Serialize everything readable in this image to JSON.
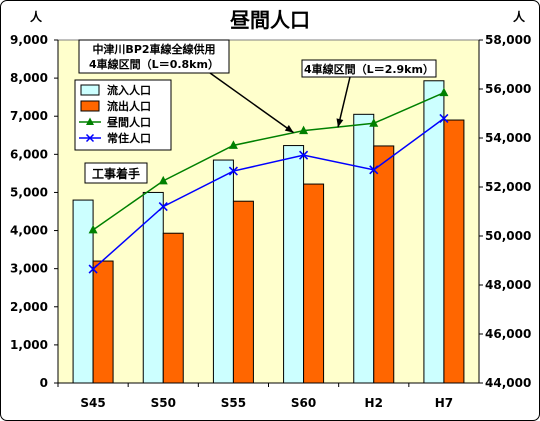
{
  "chart_data": {
    "type": "bar",
    "title": "昼間人口",
    "categories": [
      "S45",
      "S50",
      "S55",
      "S60",
      "H2",
      "H7"
    ],
    "y_left": {
      "unit": "人",
      "range": [
        0,
        9000
      ],
      "step": 1000,
      "tick_labels": [
        "0",
        "1,000",
        "2,000",
        "3,000",
        "4,000",
        "5,000",
        "6,000",
        "7,000",
        "8,000",
        "9,000"
      ]
    },
    "y_right": {
      "unit": "人",
      "range": [
        44000,
        58000
      ],
      "step": 2000,
      "tick_labels": [
        "44,000",
        "46,000",
        "48,000",
        "50,000",
        "52,000",
        "54,000",
        "56,000",
        "58,000"
      ]
    },
    "series": [
      {
        "name": "流入人口",
        "kind": "bar",
        "axis": "left",
        "color": "#ccffff",
        "values": [
          4800,
          5000,
          5850,
          6230,
          7050,
          7930
        ]
      },
      {
        "name": "流出人口",
        "kind": "bar",
        "axis": "left",
        "color": "#ff6600",
        "values": [
          3200,
          3930,
          4770,
          5220,
          6220,
          6900
        ]
      },
      {
        "name": "昼間人口",
        "kind": "line",
        "axis": "right",
        "color": "#008000",
        "marker": "triangle",
        "values": [
          50250,
          52250,
          53700,
          54300,
          54600,
          55850
        ]
      },
      {
        "name": "常住人口",
        "kind": "line",
        "axis": "right",
        "color": "#0000ff",
        "marker": "x",
        "values": [
          48650,
          51200,
          52650,
          53300,
          52700,
          54800
        ]
      }
    ],
    "plot_background": "#ffffcc",
    "grid": false,
    "legend": "top-left",
    "annotations": [
      {
        "lines": [
          "中津川BP2車線全線供用",
          "4車線区間（L＝0.8km）"
        ],
        "points_to": "S60"
      },
      {
        "lines": [
          "4車線区間（L＝2.9km）"
        ],
        "points_to": "H2"
      },
      {
        "lines": [
          "工事着手"
        ],
        "near": "S45"
      }
    ]
  }
}
